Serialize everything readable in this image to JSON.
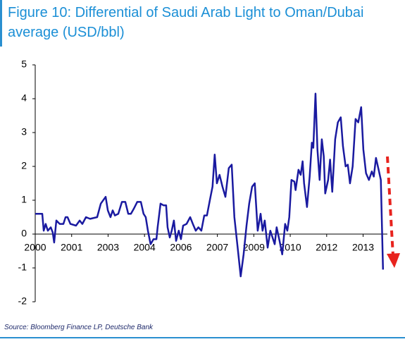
{
  "chart_data": {
    "type": "line",
    "title": "Figure 10: Differential of Saudi Arab Light to Oman/Dubai average (USD/bbl)",
    "source": "Source: Bloomberg Finance LP, Deutsche Bank",
    "xlim": [
      2000,
      2014.5
    ],
    "xticks": [
      2000,
      {
        "value": 2001.5,
        "label": "2001"
      },
      {
        "value": 2003,
        "label": "2003"
      },
      {
        "value": 2004.5,
        "label": "2004"
      },
      {
        "value": 2006,
        "label": "2006"
      },
      {
        "value": 2007.5,
        "label": "2007"
      },
      {
        "value": 2009,
        "label": "2009"
      },
      {
        "value": 2010.5,
        "label": "2010"
      },
      {
        "value": 2012,
        "label": "2012"
      },
      {
        "value": 2013.5,
        "label": "2013"
      }
    ],
    "ylim": [
      -2,
      5
    ],
    "yticks": [
      -2,
      -1,
      0,
      1,
      2,
      3,
      4,
      5
    ],
    "series": [
      {
        "color": "#1a1aa0",
        "x": [
          2000,
          2000.29,
          2000.35,
          2000.43,
          2000.52,
          2000.64,
          2000.72,
          2000.78,
          2000.87,
          2001.01,
          2001.16,
          2001.25,
          2001.33,
          2001.45,
          2001.68,
          2001.83,
          2001.94,
          2002.09,
          2002.26,
          2002.55,
          2002.7,
          2002.9,
          2002.99,
          2003.1,
          2003.19,
          2003.28,
          2003.42,
          2003.57,
          2003.71,
          2003.83,
          2003.94,
          2004.06,
          2004.2,
          2004.35,
          2004.46,
          2004.55,
          2004.64,
          2004.75,
          2004.87,
          2004.99,
          2005.04,
          2005.16,
          2005.28,
          2005.39,
          2005.45,
          2005.54,
          2005.62,
          2005.71,
          2005.8,
          2005.91,
          2006.0,
          2006.09,
          2006.23,
          2006.38,
          2006.49,
          2006.61,
          2006.72,
          2006.84,
          2006.96,
          2007.07,
          2007.19,
          2007.3,
          2007.39,
          2007.48,
          2007.59,
          2007.71,
          2007.83,
          2007.97,
          2008.09,
          2008.2,
          2008.35,
          2008.46,
          2008.58,
          2008.7,
          2008.81,
          2008.93,
          2009.04,
          2009.16,
          2009.28,
          2009.36,
          2009.45,
          2009.57,
          2009.68,
          2009.77,
          2009.86,
          2009.94,
          2010.06,
          2010.17,
          2010.29,
          2010.38,
          2010.46,
          2010.55,
          2010.67,
          2010.72,
          2010.84,
          2010.93,
          2011.01,
          2011.07,
          2011.19,
          2011.3,
          2011.39,
          2011.45,
          2011.54,
          2011.62,
          2011.71,
          2011.8,
          2011.88,
          2011.94,
          2012.06,
          2012.14,
          2012.23,
          2012.35,
          2012.46,
          2012.58,
          2012.67,
          2012.78,
          2012.87,
          2012.96,
          2013.07,
          2013.19,
          2013.3,
          2013.42,
          2013.51,
          2013.62,
          2013.74,
          2013.86,
          2013.94,
          2014.03,
          2014.14,
          2014.23,
          2014.32
        ],
        "values": [
          0.6,
          0.6,
          0.1,
          0.3,
          0.1,
          0.2,
          0.05,
          -0.25,
          0.4,
          0.3,
          0.3,
          0.5,
          0.5,
          0.3,
          0.25,
          0.4,
          0.3,
          0.5,
          0.45,
          0.5,
          0.9,
          1.1,
          0.7,
          0.5,
          0.7,
          0.55,
          0.6,
          0.95,
          0.95,
          0.6,
          0.6,
          0.75,
          0.95,
          0.95,
          0.6,
          0.5,
          0.1,
          -0.3,
          -0.15,
          -0.15,
          0.2,
          0.9,
          0.85,
          0.85,
          0.2,
          -0.1,
          0.1,
          0.4,
          -0.2,
          0.1,
          -0.15,
          0.25,
          0.3,
          0.5,
          0.3,
          0.1,
          0.2,
          0.1,
          0.55,
          0.55,
          1.0,
          1.4,
          2.35,
          1.5,
          1.75,
          1.4,
          1.1,
          1.95,
          2.05,
          0.5,
          -0.5,
          -1.25,
          -0.6,
          0.25,
          0.9,
          1.4,
          1.5,
          0.1,
          0.6,
          0.1,
          0.4,
          -0.4,
          0.1,
          -0.1,
          -0.3,
          0.2,
          -0.2,
          -0.6,
          0.3,
          0.1,
          0.5,
          1.6,
          1.55,
          1.3,
          1.9,
          1.75,
          2.15,
          1.5,
          0.8,
          1.7,
          2.7,
          2.55,
          4.15,
          2.5,
          1.6,
          2.8,
          2.3,
          1.2,
          1.6,
          2.2,
          1.25,
          2.8,
          3.3,
          3.45,
          2.6,
          2.0,
          2.05,
          1.5,
          2.0,
          3.4,
          3.3,
          3.75,
          2.5,
          1.8,
          1.6,
          1.85,
          1.7,
          2.25,
          1.9,
          1.6,
          -1.05
        ]
      }
    ]
  }
}
